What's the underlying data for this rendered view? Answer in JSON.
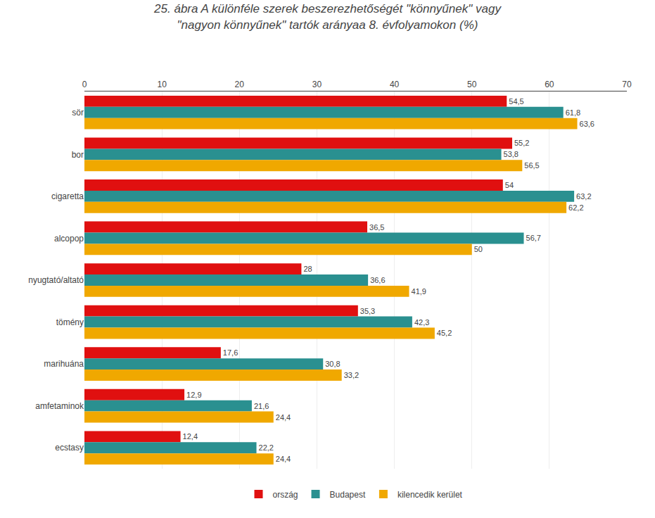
{
  "chart_data": {
    "type": "bar",
    "orientation": "horizontal",
    "title": "25. ábra A különféle szerek beszerezhetőségét \"könnyűnek\" vagy\n\"nagyon könnyűnek\" tartók arányaa 8. évfolyamokon (%)",
    "categories": [
      "sör",
      "bor",
      "cigaretta",
      "alcopop",
      "nyugtató/altató",
      "tömény",
      "marihuána",
      "amfetaminok",
      "ecstasy"
    ],
    "series": [
      {
        "name": "ország",
        "color": "#e01010",
        "values": [
          54.5,
          55.2,
          54.0,
          36.5,
          28.0,
          35.3,
          17.6,
          12.9,
          12.4
        ],
        "value_labels": [
          "54,5",
          "55,2",
          "54",
          "36,5",
          "28",
          "35,3",
          "17,6",
          "12,9",
          "12,4"
        ]
      },
      {
        "name": "Budapest",
        "color": "#2a9090",
        "values": [
          61.8,
          53.8,
          63.2,
          56.7,
          36.6,
          42.3,
          30.8,
          21.6,
          22.2
        ],
        "value_labels": [
          "61,8",
          "53,8",
          "63,2",
          "56,7",
          "36,6",
          "42,3",
          "30,8",
          "21,6",
          "22,2"
        ]
      },
      {
        "name": "kilencedik kerület",
        "color": "#f0a800",
        "values": [
          63.6,
          56.5,
          62.2,
          50.0,
          41.9,
          45.2,
          33.2,
          24.4,
          24.4
        ],
        "value_labels": [
          "63,6",
          "56,5",
          "62,2",
          "50",
          "41,9",
          "45,2",
          "33,2",
          "24,4",
          "24,4"
        ]
      }
    ],
    "xlim": [
      0,
      70
    ],
    "xticks": [
      0,
      10,
      20,
      30,
      40,
      50,
      60,
      70
    ],
    "grid": true,
    "legend": "bottom",
    "data_labels": true
  }
}
